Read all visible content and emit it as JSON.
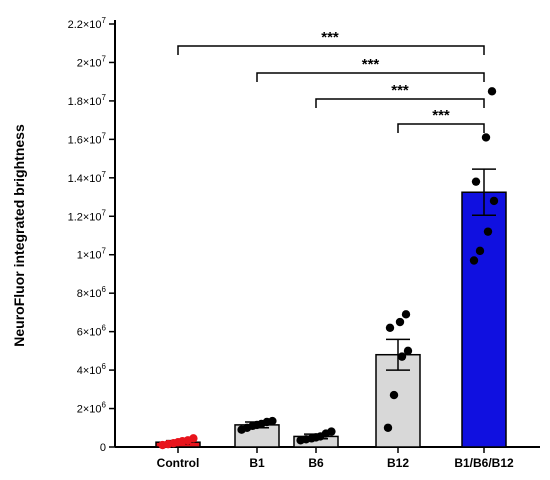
{
  "chart_data": {
    "type": "bar",
    "title": "",
    "xlabel": "",
    "ylabel": "NeuroFluor integrated brightness",
    "ylim": [
      0,
      22000000
    ],
    "yticks": [
      {
        "value": 0,
        "mant": "0",
        "exp": ""
      },
      {
        "value": 2000000,
        "mant": "2×10",
        "exp": "6"
      },
      {
        "value": 4000000,
        "mant": "4×10",
        "exp": "6"
      },
      {
        "value": 6000000,
        "mant": "6×10",
        "exp": "6"
      },
      {
        "value": 8000000,
        "mant": "8×10",
        "exp": "6"
      },
      {
        "value": 10000000,
        "mant": "1×10",
        "exp": "7"
      },
      {
        "value": 12000000,
        "mant": "1.2×10",
        "exp": "7"
      },
      {
        "value": 14000000,
        "mant": "1.4×10",
        "exp": "7"
      },
      {
        "value": 16000000,
        "mant": "1.6×10",
        "exp": "7"
      },
      {
        "value": 18000000,
        "mant": "1.8×10",
        "exp": "7"
      },
      {
        "value": 20000000,
        "mant": "2×10",
        "exp": "7"
      },
      {
        "value": 22000000,
        "mant": "2.2×10",
        "exp": "7"
      }
    ],
    "categories": [
      "Control",
      "B1",
      "B6",
      "B12",
      "B1/B6/B12"
    ],
    "values": [
      250000,
      1150000,
      550000,
      4800000,
      13250000
    ],
    "errors": [
      80000,
      150000,
      120000,
      800000,
      1200000
    ],
    "colors": [
      "#e8141c",
      "#d8d8d8",
      "#d8d8d8",
      "#d8d8d8",
      "#1010e0"
    ],
    "points": [
      [
        100000,
        150000,
        200000,
        250000,
        300000,
        350000,
        450000
      ],
      [
        900000,
        1000000,
        1100000,
        1150000,
        1200000,
        1300000,
        1350000
      ],
      [
        350000,
        400000,
        450000,
        500000,
        550000,
        700000,
        800000
      ],
      [
        1000000,
        2700000,
        4700000,
        5000000,
        6200000,
        6500000,
        6900000
      ],
      [
        9700000,
        10200000,
        11200000,
        12800000,
        13800000,
        16100000,
        18500000
      ]
    ],
    "significance": [
      {
        "from": 0,
        "to": 4,
        "label": "***"
      },
      {
        "from": 1,
        "to": 4,
        "label": "***"
      },
      {
        "from": 2,
        "to": 4,
        "label": "***"
      },
      {
        "from": 3,
        "to": 4,
        "label": "***"
      }
    ]
  }
}
